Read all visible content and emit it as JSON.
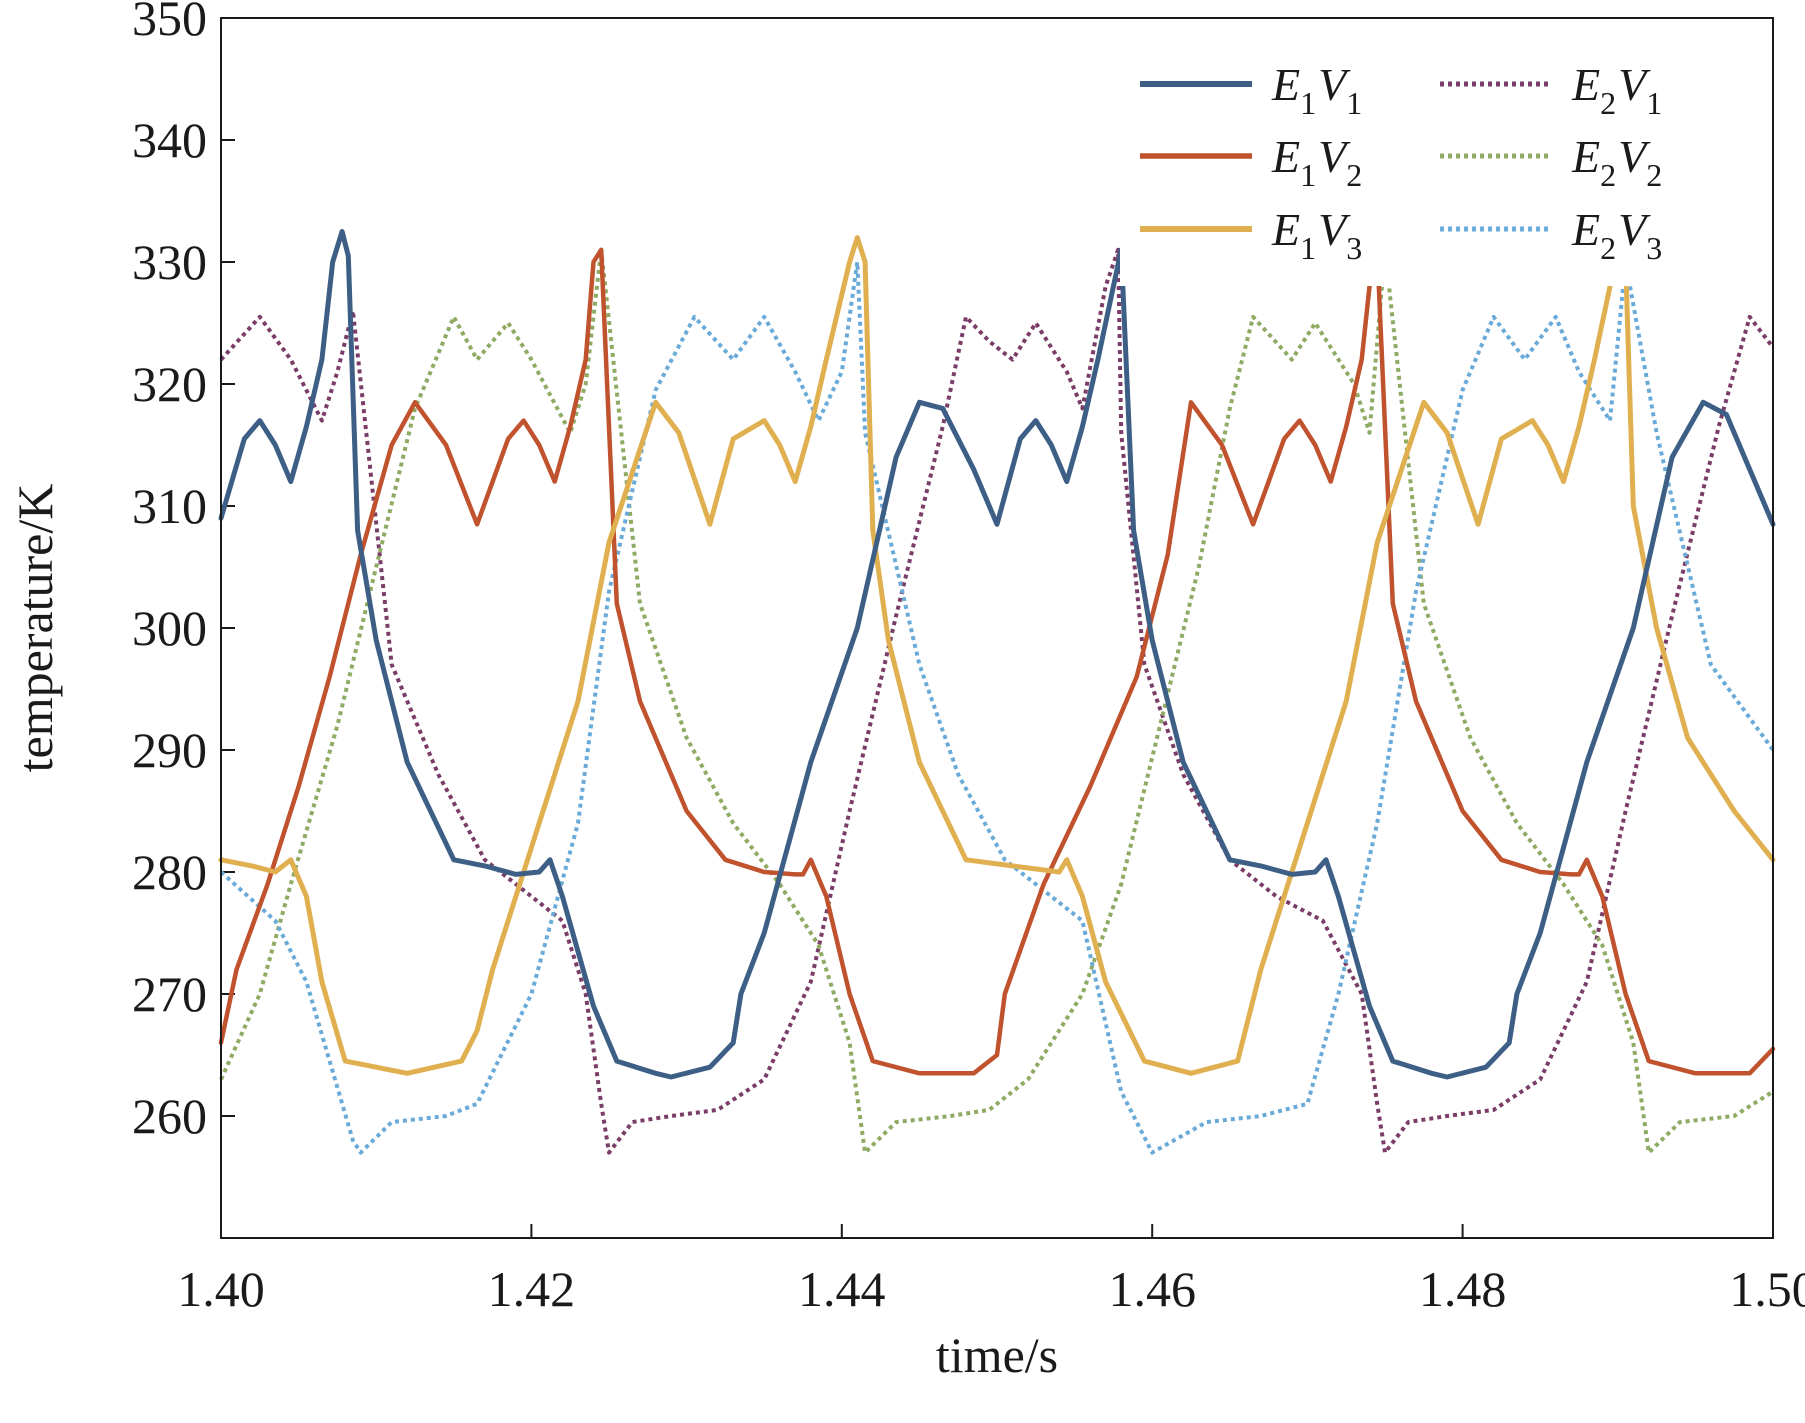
{
  "chart_data": {
    "type": "line",
    "title": "",
    "xlabel": "time/s",
    "ylabel": "temperature/K",
    "xlim": [
      1.4,
      1.5
    ],
    "ylim": [
      250,
      350
    ],
    "xticks": [
      1.4,
      1.42,
      1.44,
      1.46,
      1.48,
      1.5
    ],
    "xtick_labels": [
      "1.40",
      "1.42",
      "1.44",
      "1.46",
      "1.48",
      "1.50"
    ],
    "yticks": [
      260,
      270,
      280,
      290,
      300,
      310,
      320,
      330,
      340,
      350
    ],
    "ytick_labels": [
      "260",
      "270",
      "280",
      "290",
      "300",
      "310",
      "320",
      "330",
      "340",
      "350"
    ],
    "grid": false,
    "legend_position": "top-right",
    "series": [
      {
        "name": "E1V1",
        "label_main1": "E",
        "label_sub1": "1",
        "label_main2": "V",
        "label_sub2": "1",
        "color": "#3d5f86",
        "style": "solid",
        "width": 5,
        "x": [
          1.4,
          1.4015,
          1.4025,
          1.4035,
          1.4045,
          1.4055,
          1.4065,
          1.4072,
          1.4078,
          1.4082,
          1.4088,
          1.41,
          1.412,
          1.415,
          1.417,
          1.419,
          1.4205,
          1.4212,
          1.422,
          1.424,
          1.4255,
          1.428,
          1.429,
          1.4315,
          1.433,
          1.4335,
          1.435,
          1.438,
          1.441,
          1.4435,
          1.445,
          1.4465,
          1.4485,
          1.45,
          1.4515,
          1.4525,
          1.4535,
          1.4545,
          1.4555,
          1.4565,
          1.4575,
          1.458,
          1.4588,
          1.46,
          1.462,
          1.465,
          1.467,
          1.469,
          1.4705,
          1.4712,
          1.472,
          1.474,
          1.4755,
          1.478,
          1.479,
          1.4815,
          1.483,
          1.4835,
          1.485,
          1.488,
          1.491,
          1.4935,
          1.4955,
          1.497,
          1.5
        ],
        "y": [
          309,
          315.5,
          317,
          315,
          312,
          316.5,
          322,
          330,
          332.5,
          330.5,
          308,
          299,
          289,
          281,
          280.5,
          279.8,
          280,
          281,
          278,
          269,
          264.5,
          263.5,
          263.2,
          264,
          266,
          270,
          275,
          289,
          300,
          314,
          318.5,
          318,
          313,
          308.5,
          315.5,
          317,
          315,
          312,
          316.5,
          322,
          328,
          331,
          308,
          299,
          289,
          281,
          280.5,
          279.8,
          280,
          281,
          278,
          269,
          264.5,
          263.5,
          263.2,
          264,
          266,
          270,
          275,
          289,
          300,
          314,
          318.5,
          317.5,
          308.5
        ]
      },
      {
        "name": "E1V2",
        "label_main1": "E",
        "label_sub1": "1",
        "label_main2": "V",
        "label_sub2": "2",
        "color": "#c0532e",
        "style": "solid",
        "width": 4.5,
        "x": [
          1.4,
          1.401,
          1.403,
          1.405,
          1.407,
          1.409,
          1.411,
          1.4125,
          1.4145,
          1.4165,
          1.4185,
          1.4195,
          1.4205,
          1.4215,
          1.4225,
          1.4235,
          1.424,
          1.4245,
          1.4255,
          1.427,
          1.43,
          1.4325,
          1.435,
          1.437,
          1.4375,
          1.438,
          1.439,
          1.4405,
          1.442,
          1.445,
          1.4485,
          1.45,
          1.4505,
          1.453,
          1.456,
          1.459,
          1.461,
          1.4625,
          1.4645,
          1.4665,
          1.4685,
          1.4695,
          1.4705,
          1.4715,
          1.4725,
          1.4735,
          1.474,
          1.4745,
          1.4755,
          1.477,
          1.48,
          1.4825,
          1.485,
          1.487,
          1.4875,
          1.488,
          1.489,
          1.4905,
          1.492,
          1.495,
          1.4985,
          1.5
        ],
        "y": [
          266,
          272,
          279,
          287,
          296,
          306,
          315,
          318.5,
          315,
          308.5,
          315.5,
          317,
          315,
          312,
          316.5,
          322,
          330,
          331,
          302,
          294,
          285,
          281,
          280,
          279.8,
          279.8,
          281,
          278,
          270,
          264.5,
          263.5,
          263.5,
          265,
          270,
          279,
          287,
          296,
          306,
          318.5,
          315,
          308.5,
          315.5,
          317,
          315,
          312,
          316.5,
          322,
          328,
          331,
          302,
          294,
          285,
          281,
          280,
          279.8,
          279.8,
          281,
          278,
          270,
          264.5,
          263.5,
          263.5,
          265.5
        ]
      },
      {
        "name": "E1V3",
        "label_main1": "E",
        "label_sub1": "1",
        "label_main2": "V",
        "label_sub2": "3",
        "color": "#e0b050",
        "style": "solid",
        "width": 5,
        "x": [
          1.4,
          1.402,
          1.4035,
          1.4045,
          1.4055,
          1.4065,
          1.408,
          1.412,
          1.4155,
          1.4165,
          1.4175,
          1.42,
          1.423,
          1.425,
          1.428,
          1.4295,
          1.4315,
          1.433,
          1.435,
          1.436,
          1.437,
          1.438,
          1.439,
          1.4405,
          1.441,
          1.4415,
          1.442,
          1.443,
          1.445,
          1.448,
          1.451,
          1.454,
          1.4545,
          1.4555,
          1.457,
          1.4595,
          1.4625,
          1.4655,
          1.466,
          1.467,
          1.4695,
          1.4725,
          1.4745,
          1.4775,
          1.479,
          1.481,
          1.4825,
          1.4845,
          1.4855,
          1.4865,
          1.4875,
          1.4885,
          1.4895,
          1.49,
          1.4905,
          1.491,
          1.4925,
          1.4945,
          1.4975,
          1.5
        ],
        "y": [
          281,
          280.5,
          280,
          281,
          278,
          271,
          264.5,
          263.5,
          264.5,
          267,
          272,
          282,
          294,
          307,
          318.5,
          316,
          308.5,
          315.5,
          317,
          315,
          312,
          316.5,
          322,
          330,
          332,
          330,
          308,
          299,
          289,
          281,
          280.5,
          280,
          281,
          278,
          271,
          264.5,
          263.5,
          264.5,
          267,
          272,
          282,
          294,
          307,
          318.5,
          316,
          308.5,
          315.5,
          317,
          315,
          312,
          316.5,
          322,
          328,
          331,
          330,
          310,
          300,
          291,
          285,
          281
        ]
      },
      {
        "name": "E2V1",
        "label_main1": "E",
        "label_sub1": "2",
        "label_main2": "V",
        "label_sub2": "1",
        "color": "#7a3d67",
        "style": "dotted",
        "width": 4,
        "x": [
          1.4,
          1.4025,
          1.4045,
          1.4065,
          1.4075,
          1.4085,
          1.411,
          1.414,
          1.417,
          1.42,
          1.422,
          1.4235,
          1.4245,
          1.425,
          1.4265,
          1.429,
          1.432,
          1.435,
          1.438,
          1.4405,
          1.4435,
          1.4465,
          1.448,
          1.4495,
          1.451,
          1.4525,
          1.4545,
          1.4555,
          1.457,
          1.4578,
          1.458,
          1.4595,
          1.462,
          1.465,
          1.468,
          1.471,
          1.4735,
          1.4745,
          1.475,
          1.4765,
          1.479,
          1.482,
          1.485,
          1.488,
          1.4905,
          1.4935,
          1.4965,
          1.4985,
          1.5
        ],
        "y": [
          322,
          325.5,
          322,
          317,
          321,
          326,
          297,
          288,
          281,
          278,
          276,
          270,
          261,
          257,
          259.5,
          260,
          260.5,
          263,
          271,
          285,
          301,
          316.5,
          325.5,
          323.5,
          322,
          325,
          321,
          318,
          328,
          331,
          316,
          297,
          288,
          281,
          278,
          276,
          270,
          261,
          257,
          259.5,
          260,
          260.5,
          263,
          271,
          285,
          301,
          316.5,
          325.5,
          323
        ]
      },
      {
        "name": "E2V2",
        "label_main1": "E",
        "label_sub1": "2",
        "label_main2": "V",
        "label_sub2": "2",
        "color": "#8faa62",
        "style": "dotted",
        "width": 4,
        "x": [
          1.4,
          1.4025,
          1.4045,
          1.4075,
          1.41,
          1.4125,
          1.415,
          1.4165,
          1.4185,
          1.42,
          1.4225,
          1.4235,
          1.4245,
          1.427,
          1.43,
          1.433,
          1.436,
          1.4385,
          1.4405,
          1.4415,
          1.4435,
          1.447,
          1.4495,
          1.452,
          1.4555,
          1.458,
          1.4605,
          1.463,
          1.465,
          1.4665,
          1.469,
          1.4705,
          1.473,
          1.474,
          1.475,
          1.4775,
          1.4805,
          1.4835,
          1.4865,
          1.489,
          1.491,
          1.492,
          1.494,
          1.4975,
          1.5
        ],
        "y": [
          263,
          270,
          279,
          292,
          305,
          318,
          325.5,
          322,
          325,
          322,
          316,
          320,
          331,
          302,
          291,
          284,
          279,
          274,
          266,
          257,
          259.5,
          260,
          260.5,
          263,
          270,
          279,
          292,
          305,
          318,
          325.5,
          322,
          325,
          320,
          316,
          331,
          302,
          291,
          284,
          279,
          274,
          266,
          257,
          259.5,
          260,
          262
        ]
      },
      {
        "name": "E2V3",
        "label_main1": "E",
        "label_sub1": "2",
        "label_main2": "V",
        "label_sub2": "3",
        "color": "#6aaad8",
        "style": "dotted",
        "width": 4,
        "x": [
          1.4,
          1.4035,
          1.4055,
          1.4085,
          1.409,
          1.411,
          1.4145,
          1.4165,
          1.42,
          1.423,
          1.425,
          1.428,
          1.4305,
          1.433,
          1.435,
          1.437,
          1.4385,
          1.44,
          1.441,
          1.4415,
          1.445,
          1.4475,
          1.4505,
          1.4535,
          1.4555,
          1.458,
          1.46,
          1.4635,
          1.467,
          1.47,
          1.472,
          1.4745,
          1.477,
          1.48,
          1.482,
          1.484,
          1.486,
          1.4875,
          1.4895,
          1.4905,
          1.4925,
          1.496,
          1.5
        ],
        "y": [
          280,
          276,
          271,
          258,
          257,
          259.5,
          260,
          261,
          270,
          284,
          303,
          319.5,
          325.5,
          322,
          325.5,
          321,
          317,
          321,
          330,
          316,
          297,
          288,
          281,
          278,
          276,
          262,
          257,
          259.5,
          260,
          261,
          270,
          284,
          303,
          319.5,
          325.5,
          322,
          325.5,
          321,
          317,
          330,
          316,
          297,
          290
        ]
      }
    ]
  }
}
